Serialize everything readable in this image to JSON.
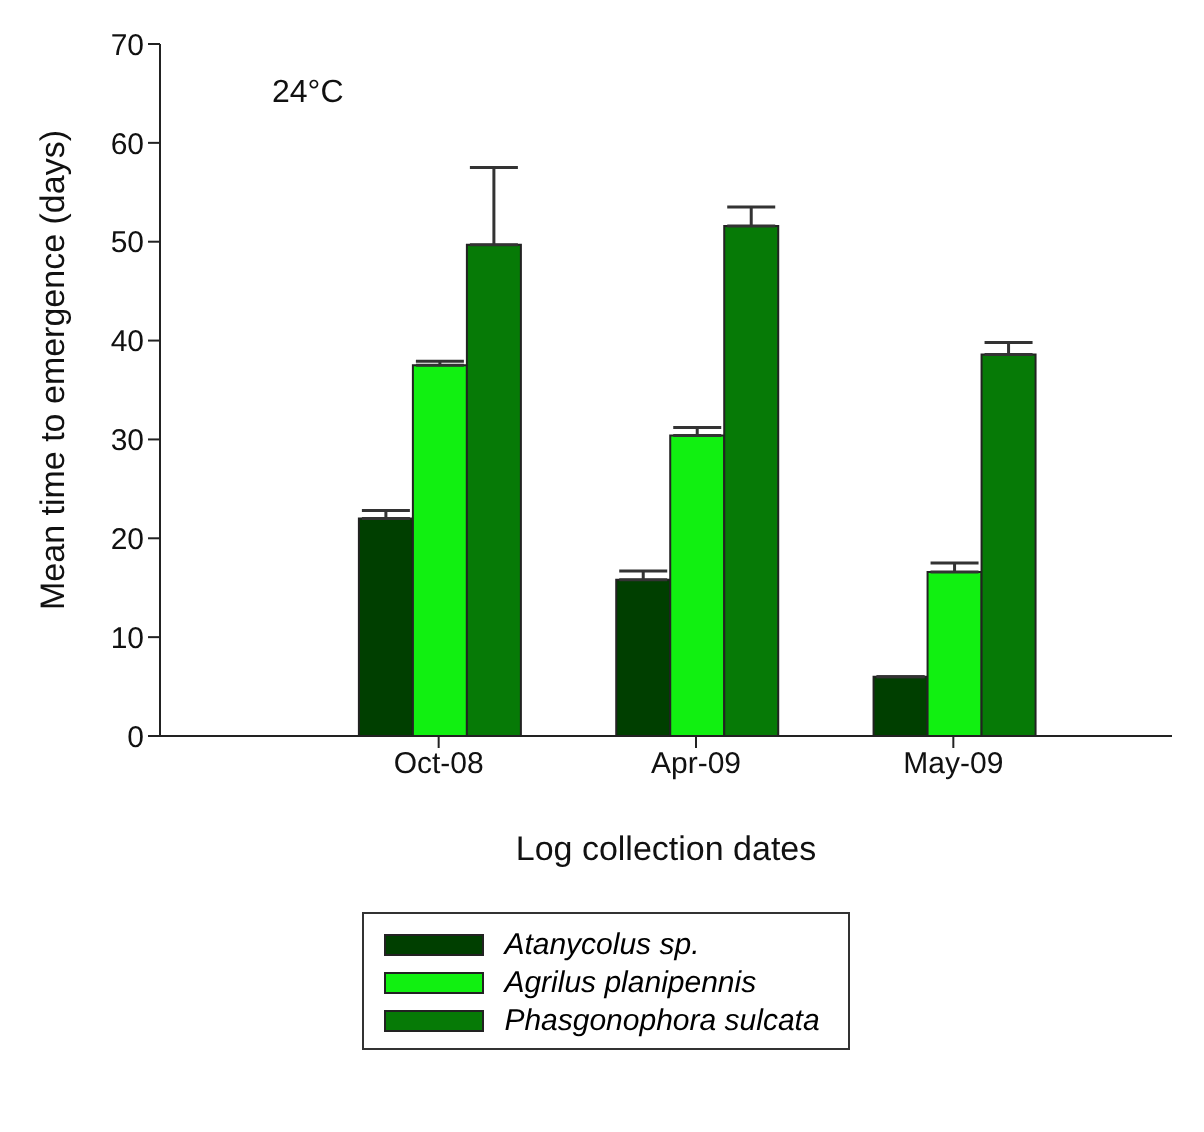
{
  "chart_data": {
    "type": "bar",
    "xlabel": "Log collection dates",
    "ylabel": "Mean time to emergence (days)",
    "annotations": [
      "24°C"
    ],
    "categories": [
      "Oct-08",
      "Apr-09",
      "May-09"
    ],
    "series": [
      {
        "name": "Atanycolus sp.",
        "color": "#003f00",
        "values": [
          22,
          15.8,
          6
        ],
        "errors": [
          [
            22,
            22.8
          ],
          [
            15.8,
            16.7
          ],
          null
        ]
      },
      {
        "name": "Agrilus planipennis",
        "color": "#11f011",
        "values": [
          37.5,
          30.4,
          16.6
        ],
        "errors": [
          [
            37.5,
            37.9
          ],
          [
            30.4,
            31.2
          ],
          [
            16.6,
            17.5
          ]
        ]
      },
      {
        "name": "Phasgonophora sulcata",
        "color": "#067a06",
        "values": [
          49.7,
          51.6,
          38.6
        ],
        "errors": [
          [
            49.7,
            57.5
          ],
          [
            51.6,
            53.5
          ],
          [
            38.6,
            39.8
          ]
        ]
      }
    ],
    "ylim": [
      0,
      70
    ],
    "yticks": [
      0,
      10,
      20,
      30,
      40,
      50,
      60,
      70
    ],
    "grid": false,
    "legend": "bottom"
  }
}
